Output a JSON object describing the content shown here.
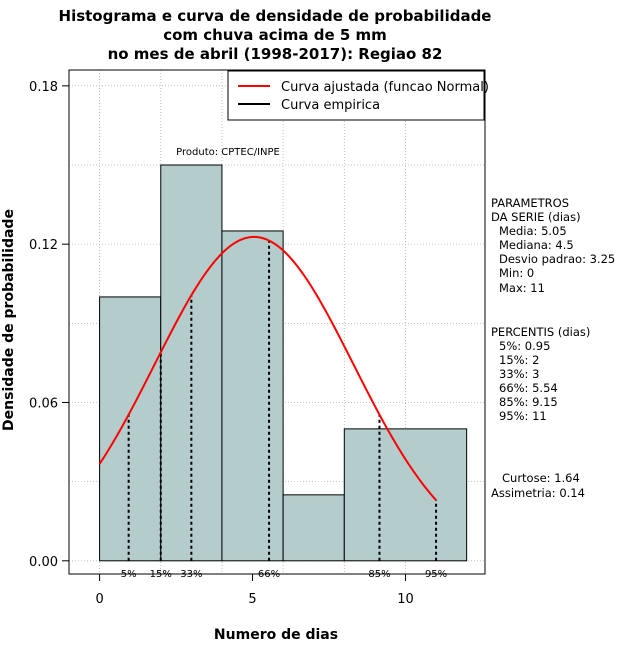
{
  "chart_data": {
    "type": "bar",
    "title_lines": [
      "Histograma e curva de densidade de probabilidade",
      "com chuva acima de 5 mm",
      "no mes de abril (1998-2017): Regiao 82"
    ],
    "xlabel": "Numero de dias",
    "ylabel": "Densidade de probabilidade",
    "xlim": [
      -1,
      12.6
    ],
    "ylim": [
      -0.005,
      0.186
    ],
    "x_ticks": [
      {
        "value": 0,
        "label": "0"
      },
      {
        "value": 5,
        "label": "5"
      },
      {
        "value": 10,
        "label": "10"
      }
    ],
    "y_ticks": [
      {
        "value": 0.0,
        "label": "0.00"
      },
      {
        "value": 0.06,
        "label": "0.06"
      },
      {
        "value": 0.12,
        "label": "0.12"
      },
      {
        "value": 0.18,
        "label": "0.18"
      }
    ],
    "grid_x": [
      0,
      2,
      4,
      6,
      8,
      10
    ],
    "grid_y": [
      0.0,
      0.03,
      0.06,
      0.09,
      0.12,
      0.15,
      0.18
    ],
    "bins": [
      {
        "start": 0,
        "end": 2,
        "density": 0.1
      },
      {
        "start": 2,
        "end": 4,
        "density": 0.15
      },
      {
        "start": 4,
        "end": 6,
        "density": 0.125
      },
      {
        "start": 6,
        "end": 8,
        "density": 0.025
      },
      {
        "start": 8,
        "end": 12,
        "density": 0.05
      }
    ],
    "bar_color": "#b4cccc",
    "normal_curve": {
      "name": "Curva ajustada (funcao Normal)",
      "mean": 5.05,
      "sd": 3.25,
      "from": 0,
      "to": 11,
      "color": "#ff0000"
    },
    "empirical_curve": {
      "name": "Curva empirica",
      "color": "#000000"
    },
    "percentile_lines": [
      {
        "x": 0.95,
        "label": "5%"
      },
      {
        "x": 2,
        "label": "15%"
      },
      {
        "x": 3,
        "label": "33%"
      },
      {
        "x": 5.54,
        "label": "66%"
      },
      {
        "x": 9.15,
        "label": "85%"
      },
      {
        "x": 11,
        "label": "95%"
      }
    ],
    "annotation": "Produto: CPTEC/INPE",
    "legend_position": "top-right"
  },
  "side_panel": {
    "params_title": [
      "PARAMETROS",
      "DA SERIE (dias)"
    ],
    "params": [
      "Media: 5.05",
      "Mediana: 4.5",
      "Desvio padrao: 3.25",
      "Min: 0",
      "Max: 11"
    ],
    "percentis_title": "PERCENTIS (dias)",
    "percentis": [
      "5%: 0.95",
      "15%: 2",
      "33%: 3",
      "66%: 5.54",
      "85%: 9.15",
      "95%: 11"
    ],
    "curtose": "Curtose: 1.64",
    "assimetria": "Assimetria: 0.14"
  }
}
